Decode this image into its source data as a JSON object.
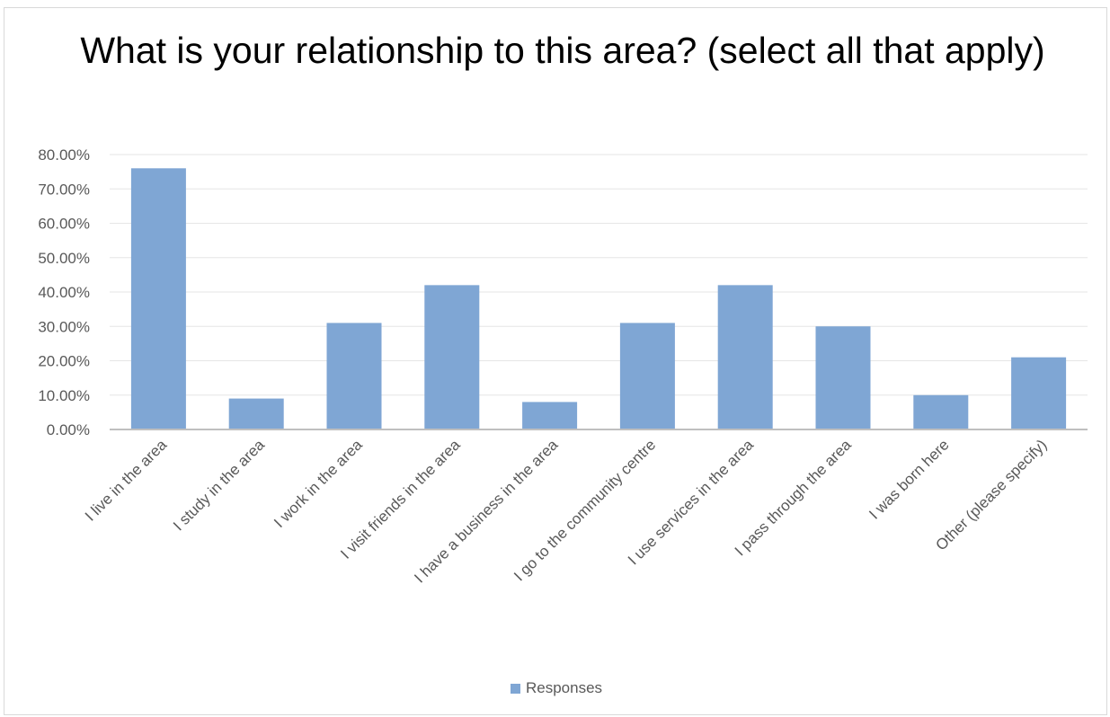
{
  "chart_data": {
    "type": "bar",
    "title": "What is your relationship to this area? (select all that apply)",
    "xlabel": "",
    "ylabel": "",
    "ylim": [
      0,
      80
    ],
    "yticks": [
      "0.00%",
      "10.00%",
      "20.00%",
      "30.00%",
      "40.00%",
      "50.00%",
      "60.00%",
      "70.00%",
      "80.00%"
    ],
    "grid": true,
    "legend_position": "bottom",
    "categories": [
      "I live in the area",
      "I study in the area",
      "I work in the area",
      "I visit friends in the area",
      "I have a business in the area",
      "I go to the community centre",
      "I use services in the area",
      "I pass through the area",
      "I was born here",
      "Other (please specify)"
    ],
    "series": [
      {
        "name": "Responses",
        "values": [
          76.0,
          9.0,
          31.0,
          42.0,
          8.0,
          31.0,
          42.0,
          30.0,
          10.0,
          21.0
        ],
        "color": "#7fa6d4"
      }
    ],
    "colors": {
      "bar": "#7fa6d4",
      "gridline": "#e6e6e6",
      "axis": "#bfbfbf",
      "text": "#595959"
    }
  }
}
